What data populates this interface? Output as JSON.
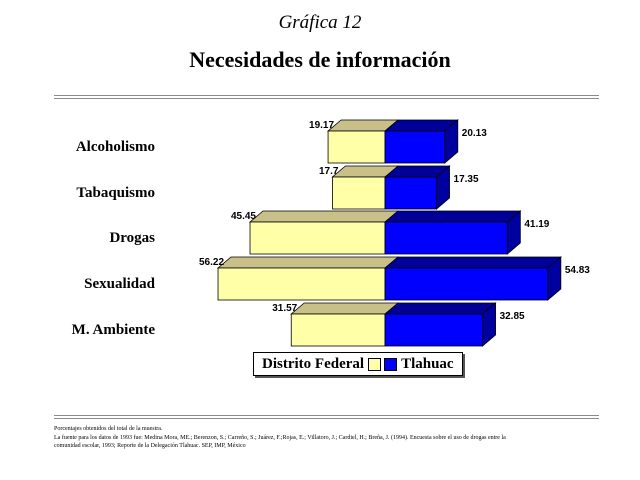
{
  "header": {
    "title": "Gráfica 12",
    "subtitle": "Necesidades de información"
  },
  "colors": {
    "left_series": "#ffffa8",
    "left_series_top": "#c8c088",
    "right_series": "#0000ff",
    "right_series_side": "#0000a0",
    "right_series_top": "#000098"
  },
  "chart_data": {
    "type": "bar",
    "orientation": "horizontal-butterfly",
    "categories": [
      "Alcoholismo",
      "Tabaquismo",
      "Drogas",
      "Sexualidad",
      "M. Ambiente"
    ],
    "series": [
      {
        "name": "Distrito Federal",
        "values": [
          19.17,
          17.7,
          45.45,
          56.22,
          31.57
        ]
      },
      {
        "name": "Tlahuac",
        "values": [
          20.13,
          17.35,
          41.19,
          54.83,
          32.85
        ]
      }
    ],
    "value_labels": {
      "left": [
        "19.17",
        "17.7",
        "45.45",
        "56.22",
        "31.57"
      ],
      "right": [
        "20.13",
        "17.35",
        "41.19",
        "54.83",
        "32.85"
      ]
    },
    "legend_placement": "bottom-center",
    "three_d": true,
    "grid": false
  },
  "legend": {
    "left": "Distrito Federal",
    "right": "Tlahuac"
  },
  "footnotes": [
    "Porcentajes obtenidos del total de la muestra.",
    "La fuente para los datos de 1993 fue: Medina Mora, ME.; Berenzon, S.; Carreño, S.; Juárez, F.;Rojas, E.; Villatoro, J.; Cardiel, H.; Breña, J. (1994). Encuesta sobre el uso de drogas entre la",
    "comunidad escolar, 1993; Reporte de la Delegación Tlahuac. SEP, IMP, México"
  ]
}
